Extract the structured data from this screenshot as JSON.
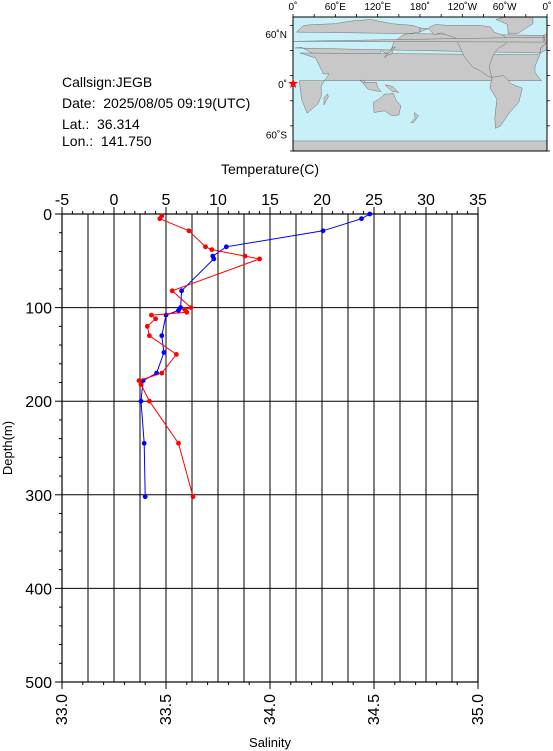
{
  "info": {
    "callsign": "Callsign:JEGB",
    "date": "Date:  2025/08/05 09:19(UTC)",
    "lat": "Lat.:  36.314",
    "lon": "Lon.:  141.750"
  },
  "map": {
    "top_labels": [
      "0˚",
      "60˚E",
      "120˚E",
      "180˚",
      "120˚W",
      "60˚W",
      "0˚"
    ],
    "left_labels": [
      "60˚N",
      "0˚",
      "60˚S"
    ],
    "colors": {
      "ocean": "#c8f0f8",
      "land": "#c8c8c8",
      "marker": "#ff0000"
    },
    "station_marker": "red-star"
  },
  "chart_data": {
    "type": "line",
    "temp_axis_label": "Temperature(C)",
    "salinity_axis_label": "Salinity",
    "depth_axis_label": "Depth(m)",
    "temp_ticks": [
      "-5",
      "0",
      "5",
      "10",
      "15",
      "20",
      "25",
      "30",
      "35"
    ],
    "salinity_ticks": [
      "33.0",
      "33.5",
      "34.0",
      "34.5",
      "35.0"
    ],
    "depth_ticks": [
      "0",
      "100",
      "200",
      "300",
      "400",
      "500"
    ],
    "temp_range": [
      -5,
      35
    ],
    "salinity_range": [
      33.0,
      35.0
    ],
    "depth_range": [
      0,
      500
    ],
    "grid": true,
    "series": [
      {
        "quantity": "temperature",
        "color": "#0000ff",
        "depth": [
          0,
          5,
          18,
          35,
          45,
          48,
          82,
          100,
          103,
          108,
          130,
          148,
          170,
          178,
          200,
          245,
          302
        ],
        "values": [
          24.6,
          23.8,
          20.1,
          10.8,
          9.5,
          9.6,
          6.5,
          6.4,
          6.2,
          5.0,
          4.6,
          4.8,
          4.1,
          2.8,
          2.6,
          2.9,
          3.0
        ]
      },
      {
        "quantity": "salinity",
        "color": "#ff0000",
        "depth": [
          2,
          5,
          18,
          35,
          38,
          45,
          48,
          82,
          100,
          102,
          105,
          108,
          112,
          120,
          130,
          150,
          170,
          178,
          182,
          200,
          245,
          302
        ],
        "values": [
          33.48,
          33.47,
          33.61,
          33.69,
          33.72,
          33.88,
          33.95,
          33.53,
          33.62,
          33.59,
          33.6,
          33.43,
          33.45,
          33.41,
          33.42,
          33.55,
          33.48,
          33.37,
          33.38,
          33.42,
          33.56,
          33.63
        ]
      }
    ]
  }
}
